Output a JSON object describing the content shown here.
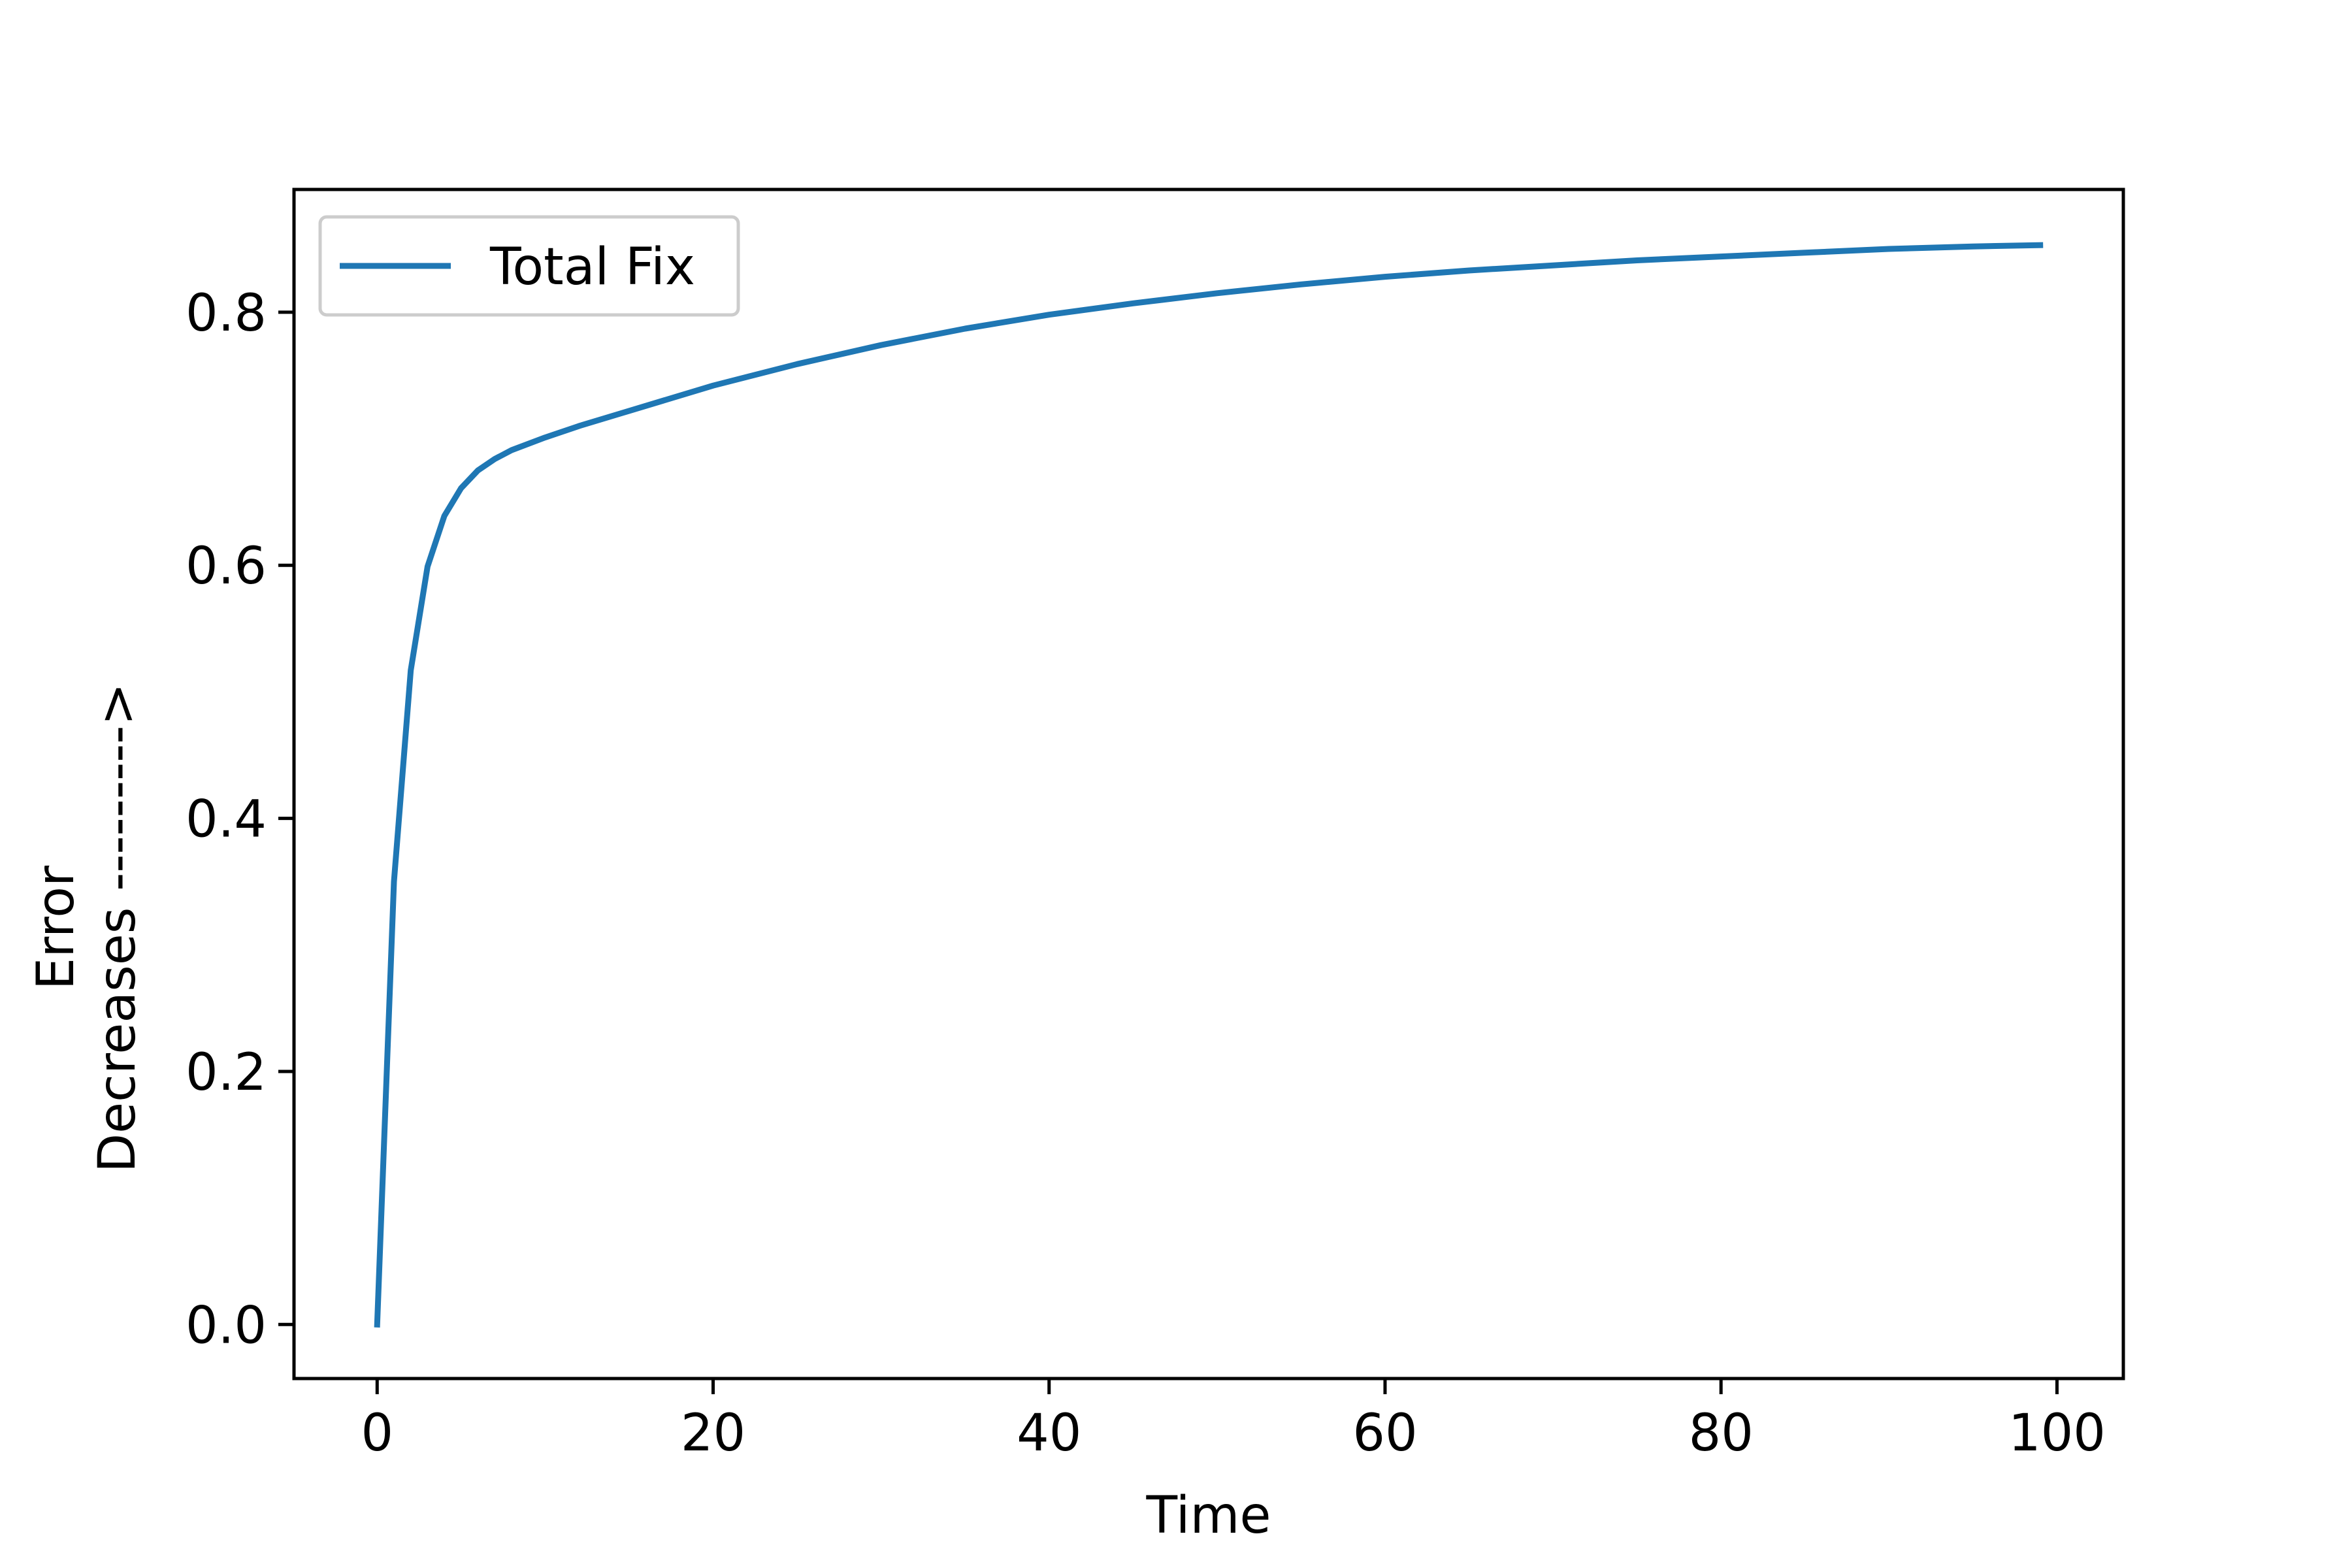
{
  "chart_data": {
    "type": "line",
    "title": "",
    "xlabel": "Time",
    "ylabel_lines": [
      "Error",
      "Decreases --------->"
    ],
    "xlim": [
      -4.95,
      103.95
    ],
    "ylim": [
      -0.0427,
      0.897
    ],
    "xticks": [
      0,
      20,
      40,
      60,
      80,
      100
    ],
    "xtick_labels": [
      "0",
      "20",
      "40",
      "60",
      "80",
      "100"
    ],
    "yticks": [
      0.0,
      0.2,
      0.4,
      0.6,
      0.8
    ],
    "ytick_labels": [
      "0.0",
      "0.2",
      "0.4",
      "0.6",
      "0.8"
    ],
    "grid": false,
    "legend": {
      "placement": "upper-left",
      "entries": [
        "Total Fix"
      ]
    },
    "series": [
      {
        "name": "Total Fix",
        "color": "#1f77b4",
        "x": [
          0,
          1,
          2,
          3,
          4,
          5,
          6,
          7,
          8,
          10,
          12,
          15,
          20,
          25,
          30,
          35,
          40,
          45,
          50,
          55,
          60,
          65,
          70,
          75,
          80,
          85,
          90,
          95,
          99
        ],
        "y": [
          0.0,
          0.35,
          0.517,
          0.599,
          0.639,
          0.661,
          0.675,
          0.684,
          0.691,
          0.701,
          0.71,
          0.722,
          0.742,
          0.759,
          0.774,
          0.787,
          0.798,
          0.807,
          0.815,
          0.822,
          0.828,
          0.833,
          0.837,
          0.841,
          0.844,
          0.847,
          0.85,
          0.852,
          0.853
        ]
      }
    ]
  }
}
